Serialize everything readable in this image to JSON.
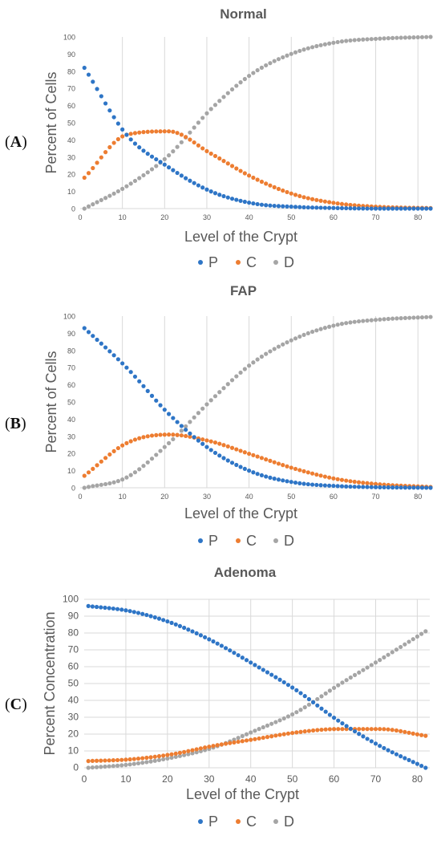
{
  "colors": {
    "P": "#2e75c6",
    "C": "#ed7d31",
    "D": "#a5a5a5",
    "grid": "#d9d9d9",
    "text": "#595959"
  },
  "chart_data": [
    {
      "panel": "A",
      "type": "scatter",
      "title": "Normal",
      "xlabel": "Level of the Crypt",
      "ylabel": "Percent of Cells",
      "xlim": [
        0,
        83
      ],
      "ylim": [
        0,
        100
      ],
      "xticks": [
        0,
        10,
        20,
        30,
        40,
        50,
        60,
        70,
        80
      ],
      "yticks": [
        0,
        10,
        20,
        30,
        40,
        50,
        60,
        70,
        80,
        90,
        100
      ],
      "grid": "vertical",
      "legend": "bottom",
      "x": [
        1,
        11,
        21,
        31,
        41,
        51,
        61,
        71,
        83
      ],
      "series": [
        {
          "name": "P",
          "values": [
            82,
            43,
            24,
            10,
            3,
            1,
            0.3,
            0,
            0
          ]
        },
        {
          "name": "C",
          "values": [
            18,
            43,
            45,
            32,
            18,
            8,
            3,
            1,
            0.3
          ]
        },
        {
          "name": "D",
          "values": [
            0,
            13,
            31,
            58,
            79,
            91,
            97,
            99,
            100
          ]
        }
      ]
    },
    {
      "panel": "B",
      "type": "scatter",
      "title": "FAP",
      "xlabel": "Level of the Crypt",
      "ylabel": "Percent of Cells",
      "xlim": [
        0,
        83
      ],
      "ylim": [
        0,
        100
      ],
      "xticks": [
        0,
        10,
        20,
        30,
        40,
        50,
        60,
        70,
        80
      ],
      "yticks": [
        0,
        10,
        20,
        30,
        40,
        50,
        60,
        70,
        80,
        90,
        100
      ],
      "grid": "vertical",
      "legend": "bottom",
      "x": [
        1,
        11,
        21,
        31,
        41,
        51,
        61,
        71,
        83
      ],
      "series": [
        {
          "name": "P",
          "values": [
            93,
            70,
            43,
            22,
            9,
            3,
            1,
            0.3,
            0
          ]
        },
        {
          "name": "C",
          "values": [
            7,
            26,
            31,
            27,
            19,
            11,
            5,
            2,
            0.5
          ]
        },
        {
          "name": "D",
          "values": [
            0,
            6,
            26,
            51,
            73,
            87,
            95,
            98,
            99.5
          ]
        }
      ]
    },
    {
      "panel": "C",
      "type": "scatter",
      "title": "Adenoma",
      "xlabel": "Level of the Crypt",
      "ylabel": "Percent Concentration",
      "xlim": [
        0,
        83
      ],
      "ylim": [
        0,
        100
      ],
      "xticks": [
        0,
        10,
        20,
        30,
        40,
        50,
        60,
        70,
        80
      ],
      "yticks": [
        0,
        10,
        20,
        30,
        40,
        50,
        60,
        70,
        80,
        90,
        100
      ],
      "grid": "both",
      "legend": "bottom",
      "x": [
        1,
        11,
        21,
        31,
        41,
        51,
        61,
        71,
        82
      ],
      "series": [
        {
          "name": "P",
          "values": [
            96,
            93,
            86,
            75,
            61,
            46,
            28,
            13,
            0
          ]
        },
        {
          "name": "C",
          "values": [
            4,
            5,
            8,
            13,
            17,
            21,
            23,
            23,
            19
          ]
        },
        {
          "name": "D",
          "values": [
            0,
            2,
            6,
            12,
            22,
            33,
            49,
            64,
            81
          ]
        }
      ]
    }
  ]
}
